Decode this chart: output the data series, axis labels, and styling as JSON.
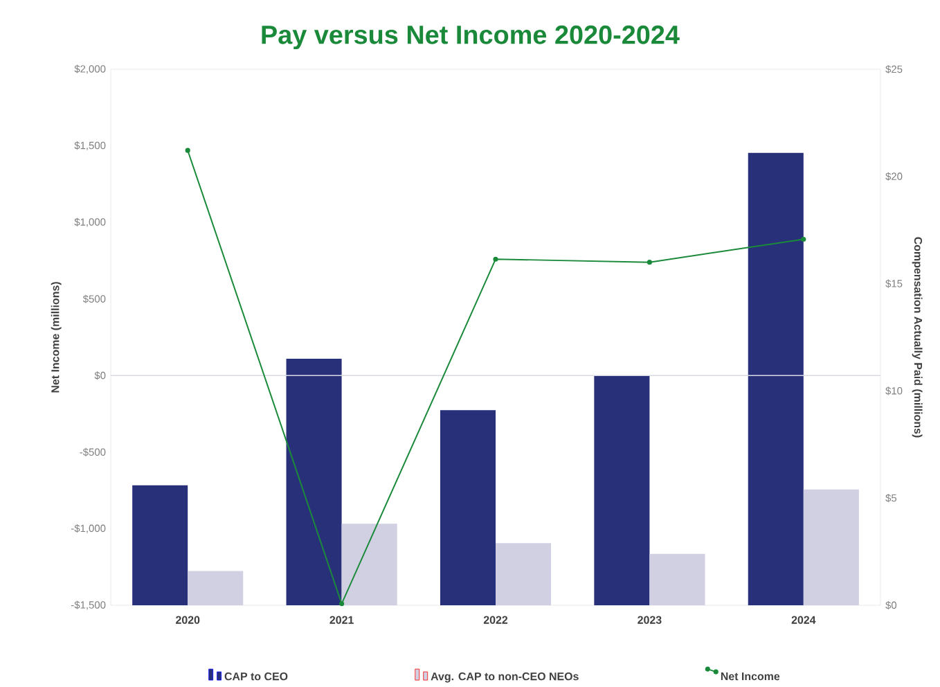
{
  "chart_data": {
    "type": "bar",
    "title": "Pay versus Net Income 2020-2024",
    "ylabel": "Net Income (millions)",
    "y2label": "Compensation Actually Paid (millions)",
    "categories": [
      "2020",
      "2021",
      "2022",
      "2023",
      "2024"
    ],
    "series": [
      {
        "name": "CAP to CEO",
        "color": "#29307a",
        "axis": "y2",
        "values": [
          5.6,
          11.5,
          9.1,
          10.7,
          21.1
        ]
      },
      {
        "name": "Avg. CAP to non-CEO NEOs",
        "color": "#d0d0e2",
        "axis": "y2",
        "values": [
          1.6,
          3.8,
          2.9,
          2.4,
          5.4
        ]
      },
      {
        "name": "Net Income",
        "type": "line",
        "color": "#1a8a3a",
        "axis": "y",
        "marker": "circle",
        "line_style": "solid",
        "values": [
          1470,
          -1490,
          760,
          740,
          890
        ]
      }
    ],
    "ylim": [
      -1500,
      2000
    ],
    "yticks": [
      {
        "value": -1500,
        "label": "-$1,500"
      },
      {
        "value": -1000,
        "label": "-$1,000"
      },
      {
        "value": -500,
        "label": "-$500"
      },
      {
        "value": 0,
        "label": "$0"
      },
      {
        "value": 500,
        "label": "$500"
      },
      {
        "value": 1000,
        "label": "$1,000"
      },
      {
        "value": 1500,
        "label": "$1,500"
      },
      {
        "value": 2000,
        "label": "$2,000"
      }
    ],
    "y2lim": [
      0,
      25
    ],
    "y2ticks": [
      {
        "value": 0,
        "label": "$0"
      },
      {
        "value": 5,
        "label": "$5"
      },
      {
        "value": 10,
        "label": "$10"
      },
      {
        "value": 15,
        "label": "$15"
      },
      {
        "value": 20,
        "label": "$20"
      },
      {
        "value": 25,
        "label": "$25"
      }
    ],
    "ref_lines": [
      {
        "axis": "y",
        "value": 0,
        "color": "#d9d9e4"
      }
    ],
    "legend": "bottom"
  }
}
